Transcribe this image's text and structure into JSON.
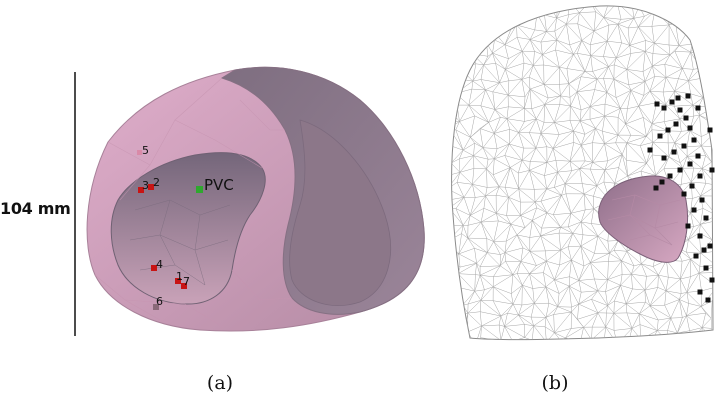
{
  "panel_a": {
    "caption": "(a)",
    "scale_label": "104 mm",
    "pvc_label": "PVC",
    "pacing_sites": [
      "1",
      "2",
      "3",
      "4",
      "5",
      "6",
      "7"
    ],
    "colors": {
      "ventricle_light": "#d9a4bd",
      "ventricle_dark": "#8f7a8c",
      "marker_red": "#c81414",
      "marker_pvc": "#2fa82f"
    }
  },
  "panel_b": {
    "caption": "(b)",
    "colors": {
      "mesh_line": "#9a9a9a",
      "heart": "#c48aa8",
      "electrode": "#111111"
    }
  }
}
